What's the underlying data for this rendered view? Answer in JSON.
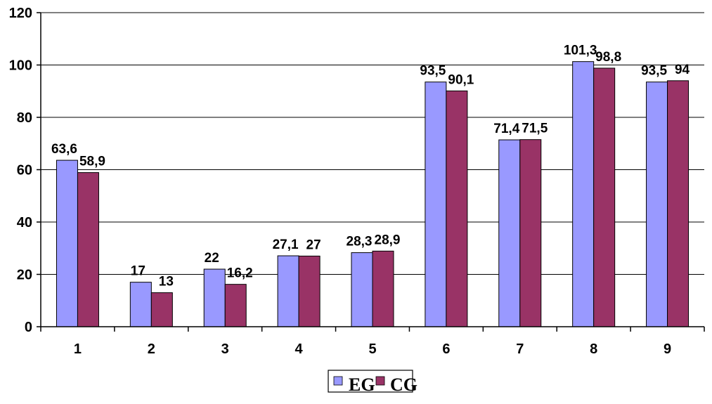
{
  "chart_data": {
    "type": "bar",
    "categories": [
      "1",
      "2",
      "3",
      "4",
      "5",
      "6",
      "7",
      "8",
      "9"
    ],
    "series": [
      {
        "name": "EG",
        "color": "#9999ff",
        "values": [
          63.6,
          17,
          22,
          27.1,
          28.3,
          93.5,
          71.4,
          101.3,
          93.5
        ],
        "labels": [
          "63,6",
          "17",
          "22",
          "27,1",
          "28,3",
          "93,5",
          "71,4",
          "101,3",
          "93,5"
        ]
      },
      {
        "name": "CG",
        "color": "#993366",
        "values": [
          58.9,
          13,
          16.2,
          27,
          28.9,
          90.1,
          71.5,
          98.8,
          94
        ],
        "labels": [
          "58,9",
          "13",
          "16,2",
          "27",
          "28,9",
          "90,1",
          "71,5",
          "98,8",
          "94"
        ]
      }
    ],
    "yticks": [
      "0",
      "20",
      "40",
      "60",
      "80",
      "100",
      "120"
    ],
    "ylim": [
      0,
      120
    ],
    "grid": true,
    "legend": "bottom-center",
    "title": "",
    "xlabel": "",
    "ylabel": ""
  }
}
